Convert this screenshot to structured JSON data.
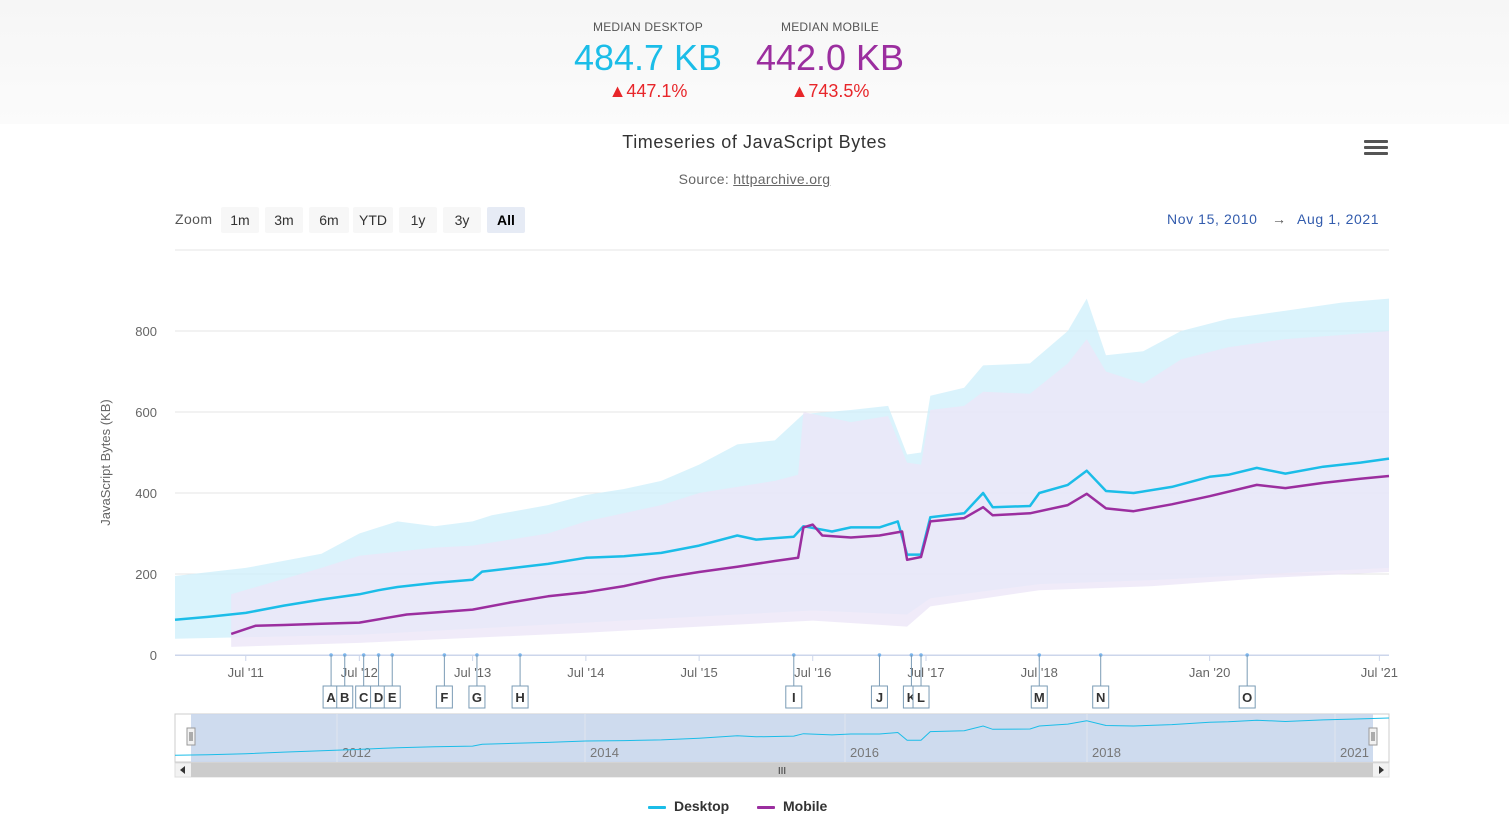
{
  "metrics": {
    "desktop": {
      "label": "MEDIAN DESKTOP",
      "value": "484.7 KB",
      "delta": "▲447.1%",
      "color": "#1bbde8"
    },
    "mobile": {
      "label": "MEDIAN MOBILE",
      "value": "442.0 KB",
      "delta": "▲743.5%",
      "color": "#9b2e9f"
    }
  },
  "chart": {
    "title": "Timeseries of JavaScript Bytes",
    "subtitle_prefix": "Source: ",
    "subtitle_link": "httparchive.org",
    "menu_icon": "hamburger-icon"
  },
  "range_selector": {
    "zoom_label": "Zoom",
    "buttons": [
      "1m",
      "3m",
      "6m",
      "YTD",
      "1y",
      "3y",
      "All"
    ],
    "selected": "All",
    "from": "Nov 15, 2010",
    "arrow": "→",
    "to": "Aug 1, 2021"
  },
  "navigator": {
    "year_labels": [
      "2012",
      "2014",
      "2016",
      "2018",
      "2021"
    ],
    "scrollbar_grip": "III"
  },
  "legend": {
    "desktop": "Desktop",
    "mobile": "Mobile"
  },
  "chart_data": {
    "type": "line",
    "ylabel": "JavaScript Bytes (KB)",
    "ylim": [
      0,
      1000
    ],
    "yticks": [
      0,
      200,
      400,
      600,
      800
    ],
    "x_tick_labels": [
      {
        "label": "Jul '11",
        "date": "2011-07-01"
      },
      {
        "label": "Jul '12",
        "date": "2012-07-01"
      },
      {
        "label": "Jul '13",
        "date": "2013-07-01"
      },
      {
        "label": "Jul '14",
        "date": "2014-07-01"
      },
      {
        "label": "Jul '15",
        "date": "2015-07-01"
      },
      {
        "label": "Jul '16",
        "date": "2016-07-01"
      },
      {
        "label": "Jul '17",
        "date": "2017-07-01"
      },
      {
        "label": "Jul '18",
        "date": "2018-07-01"
      },
      {
        "label": "Jan '20",
        "date": "2020-01-01"
      },
      {
        "label": "Jul '21",
        "date": "2021-07-01"
      }
    ],
    "xrange": [
      "2010-11-15",
      "2021-08-01"
    ],
    "grid": true,
    "legend_position": "bottom-center",
    "series": [
      {
        "name": "Desktop",
        "color": "#1bbde8",
        "points": [
          [
            "2010-11-15",
            87
          ],
          [
            "2011-03-01",
            94
          ],
          [
            "2011-07-01",
            104
          ],
          [
            "2011-11-01",
            122
          ],
          [
            "2012-03-01",
            137
          ],
          [
            "2012-07-01",
            150
          ],
          [
            "2012-09-01",
            160
          ],
          [
            "2012-11-01",
            168
          ],
          [
            "2013-03-01",
            178
          ],
          [
            "2013-07-01",
            186
          ],
          [
            "2013-08-01",
            206
          ],
          [
            "2013-11-01",
            214
          ],
          [
            "2014-03-01",
            225
          ],
          [
            "2014-07-01",
            240
          ],
          [
            "2014-11-01",
            244
          ],
          [
            "2015-03-01",
            252
          ],
          [
            "2015-07-01",
            270
          ],
          [
            "2015-11-01",
            295
          ],
          [
            "2016-01-01",
            285
          ],
          [
            "2016-05-01",
            292
          ],
          [
            "2016-06-01",
            318
          ],
          [
            "2016-09-01",
            305
          ],
          [
            "2016-11-01",
            315
          ],
          [
            "2017-02-01",
            315
          ],
          [
            "2017-04-01",
            330
          ],
          [
            "2017-05-01",
            248
          ],
          [
            "2017-06-15",
            248
          ],
          [
            "2017-07-15",
            340
          ],
          [
            "2017-11-01",
            350
          ],
          [
            "2018-01-01",
            400
          ],
          [
            "2018-02-01",
            365
          ],
          [
            "2018-06-01",
            368
          ],
          [
            "2018-07-01",
            400
          ],
          [
            "2018-10-01",
            420
          ],
          [
            "2018-12-01",
            455
          ],
          [
            "2019-02-01",
            405
          ],
          [
            "2019-05-01",
            400
          ],
          [
            "2019-09-01",
            415
          ],
          [
            "2020-01-01",
            440
          ],
          [
            "2020-03-01",
            445
          ],
          [
            "2020-06-01",
            462
          ],
          [
            "2020-09-01",
            448
          ],
          [
            "2021-01-01",
            465
          ],
          [
            "2021-05-01",
            475
          ],
          [
            "2021-08-01",
            485
          ]
        ]
      },
      {
        "name": "Mobile",
        "color": "#9b2e9f",
        "points": [
          [
            "2011-05-15",
            52
          ],
          [
            "2011-08-01",
            72
          ],
          [
            "2011-11-01",
            74
          ],
          [
            "2012-03-01",
            77
          ],
          [
            "2012-07-01",
            80
          ],
          [
            "2012-10-01",
            92
          ],
          [
            "2012-12-01",
            100
          ],
          [
            "2013-03-01",
            105
          ],
          [
            "2013-07-01",
            112
          ],
          [
            "2013-11-01",
            130
          ],
          [
            "2014-03-01",
            145
          ],
          [
            "2014-07-01",
            155
          ],
          [
            "2014-11-01",
            170
          ],
          [
            "2015-03-01",
            190
          ],
          [
            "2015-07-01",
            205
          ],
          [
            "2015-11-01",
            218
          ],
          [
            "2016-03-01",
            232
          ],
          [
            "2016-05-15",
            240
          ],
          [
            "2016-06-01",
            315
          ],
          [
            "2016-07-01",
            322
          ],
          [
            "2016-08-01",
            295
          ],
          [
            "2016-11-01",
            290
          ],
          [
            "2017-02-01",
            295
          ],
          [
            "2017-04-15",
            305
          ],
          [
            "2017-05-01",
            235
          ],
          [
            "2017-06-15",
            242
          ],
          [
            "2017-07-15",
            330
          ],
          [
            "2017-11-01",
            338
          ],
          [
            "2018-01-01",
            365
          ],
          [
            "2018-02-01",
            345
          ],
          [
            "2018-06-01",
            350
          ],
          [
            "2018-10-01",
            370
          ],
          [
            "2018-12-01",
            398
          ],
          [
            "2019-02-01",
            362
          ],
          [
            "2019-05-01",
            355
          ],
          [
            "2019-09-01",
            372
          ],
          [
            "2020-01-01",
            392
          ],
          [
            "2020-06-01",
            420
          ],
          [
            "2020-09-01",
            412
          ],
          [
            "2021-01-01",
            425
          ],
          [
            "2021-05-01",
            435
          ],
          [
            "2021-08-01",
            442
          ]
        ]
      }
    ],
    "desktop_range_band": {
      "color": "#cdeffb",
      "upper": [
        [
          "2010-11-15",
          195
        ],
        [
          "2011-07-01",
          215
        ],
        [
          "2012-03-01",
          250
        ],
        [
          "2012-07-01",
          300
        ],
        [
          "2012-11-01",
          330
        ],
        [
          "2013-03-01",
          318
        ],
        [
          "2013-07-01",
          330
        ],
        [
          "2013-09-01",
          345
        ],
        [
          "2014-03-01",
          370
        ],
        [
          "2014-07-01",
          395
        ],
        [
          "2014-11-01",
          410
        ],
        [
          "2015-03-01",
          430
        ],
        [
          "2015-07-01",
          470
        ],
        [
          "2015-11-01",
          520
        ],
        [
          "2016-03-01",
          530
        ],
        [
          "2016-06-01",
          595
        ],
        [
          "2016-11-01",
          605
        ],
        [
          "2017-03-01",
          615
        ],
        [
          "2017-05-01",
          495
        ],
        [
          "2017-06-15",
          500
        ],
        [
          "2017-07-15",
          640
        ],
        [
          "2017-11-01",
          660
        ],
        [
          "2018-01-01",
          715
        ],
        [
          "2018-06-01",
          720
        ],
        [
          "2018-10-01",
          800
        ],
        [
          "2018-12-01",
          880
        ],
        [
          "2019-02-01",
          740
        ],
        [
          "2019-06-01",
          750
        ],
        [
          "2019-10-01",
          800
        ],
        [
          "2020-03-01",
          830
        ],
        [
          "2020-09-01",
          850
        ],
        [
          "2021-03-01",
          870
        ],
        [
          "2021-08-01",
          880
        ]
      ],
      "lower": [
        [
          "2010-11-15",
          40
        ],
        [
          "2012-07-01",
          50
        ],
        [
          "2014-07-01",
          80
        ],
        [
          "2016-07-01",
          110
        ],
        [
          "2017-05-01",
          100
        ],
        [
          "2017-07-15",
          140
        ],
        [
          "2018-07-01",
          175
        ],
        [
          "2019-07-01",
          185
        ],
        [
          "2020-07-01",
          200
        ],
        [
          "2021-08-01",
          215
        ]
      ]
    },
    "mobile_range_band": {
      "color": "#ece6f7",
      "upper": [
        [
          "2011-05-15",
          150
        ],
        [
          "2012-03-01",
          215
        ],
        [
          "2012-07-01",
          245
        ],
        [
          "2013-03-01",
          265
        ],
        [
          "2013-07-01",
          270
        ],
        [
          "2014-03-01",
          300
        ],
        [
          "2014-07-01",
          330
        ],
        [
          "2015-03-01",
          370
        ],
        [
          "2015-07-01",
          400
        ],
        [
          "2016-03-01",
          430
        ],
        [
          "2016-05-15",
          445
        ],
        [
          "2016-06-01",
          600
        ],
        [
          "2016-11-01",
          575
        ],
        [
          "2017-03-01",
          590
        ],
        [
          "2017-05-01",
          475
        ],
        [
          "2017-06-15",
          470
        ],
        [
          "2017-07-15",
          605
        ],
        [
          "2017-11-01",
          615
        ],
        [
          "2018-01-01",
          650
        ],
        [
          "2018-06-01",
          645
        ],
        [
          "2018-10-01",
          720
        ],
        [
          "2018-12-01",
          780
        ],
        [
          "2019-02-01",
          700
        ],
        [
          "2019-06-01",
          670
        ],
        [
          "2019-10-01",
          730
        ],
        [
          "2020-03-01",
          760
        ],
        [
          "2020-09-01",
          780
        ],
        [
          "2021-03-01",
          790
        ],
        [
          "2021-08-01",
          800
        ]
      ],
      "lower": [
        [
          "2011-05-15",
          20
        ],
        [
          "2012-07-01",
          30
        ],
        [
          "2014-07-01",
          55
        ],
        [
          "2016-07-01",
          85
        ],
        [
          "2017-05-01",
          70
        ],
        [
          "2017-07-15",
          120
        ],
        [
          "2018-07-01",
          160
        ],
        [
          "2019-07-01",
          170
        ],
        [
          "2020-07-01",
          190
        ],
        [
          "2021-08-01",
          205
        ]
      ]
    },
    "flags": [
      {
        "label": "A",
        "date": "2012-04-01"
      },
      {
        "label": "B",
        "date": "2012-05-15"
      },
      {
        "label": "C",
        "date": "2012-07-15"
      },
      {
        "label": "D",
        "date": "2012-09-01"
      },
      {
        "label": "E",
        "date": "2012-10-15"
      },
      {
        "label": "F",
        "date": "2013-04-01"
      },
      {
        "label": "G",
        "date": "2013-07-15"
      },
      {
        "label": "H",
        "date": "2013-12-01"
      },
      {
        "label": "I",
        "date": "2016-05-01"
      },
      {
        "label": "J",
        "date": "2017-02-01"
      },
      {
        "label": "K",
        "date": "2017-05-15"
      },
      {
        "label": "L",
        "date": "2017-06-15"
      },
      {
        "label": "M",
        "date": "2018-07-01"
      },
      {
        "label": "N",
        "date": "2019-01-15"
      },
      {
        "label": "O",
        "date": "2020-05-01"
      }
    ]
  }
}
